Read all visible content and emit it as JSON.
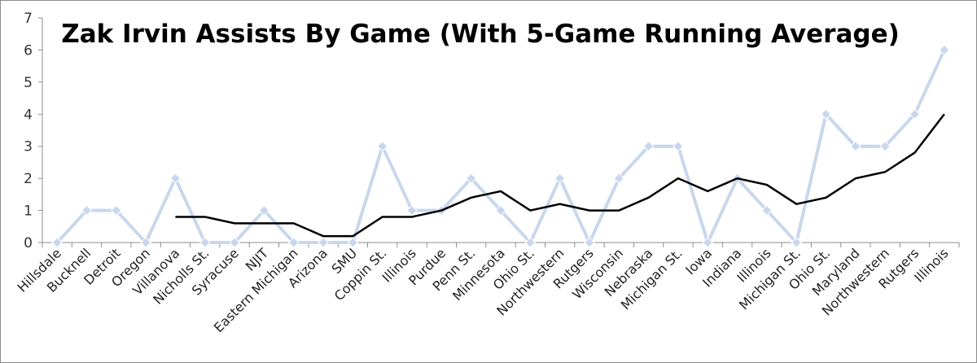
{
  "chart_data": {
    "type": "line",
    "title": "Zak Irvin Assists By Game (With 5-Game Running Average)",
    "xlabel": "",
    "ylabel": "",
    "ylim": [
      0,
      7
    ],
    "yticks": [
      "0",
      "1",
      "2",
      "3",
      "4",
      "5",
      "6",
      "7"
    ],
    "grid": false,
    "legend": "none",
    "categories": [
      "Hillsdale",
      "Bucknell",
      "Detroit",
      "Oregon",
      "Villanova",
      "Nicholls St.",
      "Syracuse",
      "NJIT",
      "Eastern Michigan",
      "Arizona",
      "SMU",
      "Coppin St.",
      "Illinois",
      "Purdue",
      "Penn St.",
      "Minnesota",
      "Ohio St.",
      "Northwestern",
      "Rutgers",
      "Wisconsin",
      "Nebraska",
      "Michigan St.",
      "Iowa",
      "Indiana",
      "Illinois",
      "Michigan St.",
      "Ohio St.",
      "Maryland",
      "Northwestern",
      "Rutgers",
      "Illinois"
    ],
    "series": [
      {
        "values": [
          0,
          1,
          1,
          0,
          2,
          0,
          0,
          1,
          0,
          0,
          0,
          3,
          1,
          1,
          2,
          1,
          0,
          2,
          0,
          2,
          3,
          3,
          0,
          2,
          1,
          0,
          4,
          3,
          3,
          4,
          6
        ],
        "color": "#c9d7ec",
        "marker": "diamond"
      },
      {
        "values": [
          null,
          null,
          null,
          null,
          0.8,
          0.8,
          0.6,
          0.6,
          0.6,
          0.2,
          0.2,
          0.8,
          0.8,
          1.0,
          1.4,
          1.6,
          1.0,
          1.2,
          1.0,
          1.0,
          1.4,
          2.0,
          1.6,
          2.0,
          1.8,
          1.2,
          1.4,
          2.0,
          2.2,
          2.8,
          4.0
        ],
        "color": "#000000",
        "marker": "none"
      }
    ]
  }
}
